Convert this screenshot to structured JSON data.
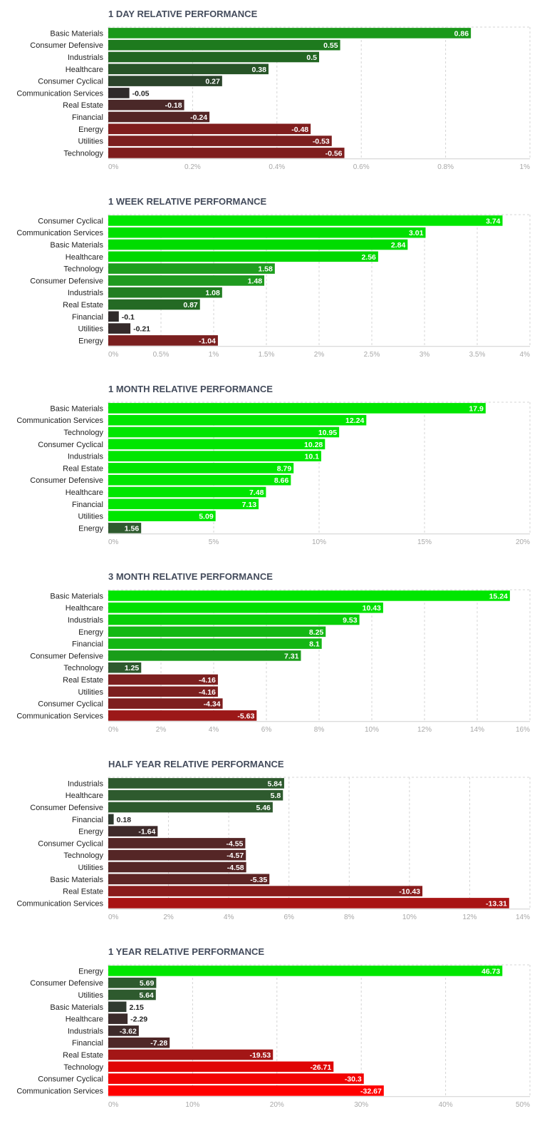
{
  "colors": {
    "positive_strong": "#00e600",
    "positive_mid": "#1ea11e",
    "positive_weak": "#2e5a2e",
    "negative_weak": "#3b2b2b",
    "negative_mid": "#7f1f1f",
    "negative_strong": "#ff0000",
    "grid": "#d4d4d4",
    "title": "#444c5c"
  },
  "chart_data": [
    {
      "type": "bar",
      "orientation": "horizontal",
      "title": "1 DAY RELATIVE PERFORMANCE",
      "categories": [
        "Basic Materials",
        "Consumer Defensive",
        "Industrials",
        "Healthcare",
        "Consumer Cyclical",
        "Communication Services",
        "Real Estate",
        "Financial",
        "Energy",
        "Utilities",
        "Technology"
      ],
      "values": [
        0.86,
        0.55,
        0.5,
        0.38,
        0.27,
        -0.05,
        -0.18,
        -0.24,
        -0.48,
        -0.53,
        -0.56
      ],
      "value_labels": [
        "0.86",
        "0.55",
        "0.5",
        "0.38",
        "0.27",
        "-0.05",
        "-0.18",
        "-0.24",
        "-0.48",
        "-0.53",
        "-0.56"
      ],
      "bar_colors": [
        "#1b991b",
        "#1e7a1e",
        "#226622",
        "#275427",
        "#2b442b",
        "#2f2a2a",
        "#4a2828",
        "#542626",
        "#801d1d",
        "#7c1f1f",
        "#7e1e1e"
      ],
      "xlim": [
        0,
        1
      ],
      "ticks": [
        0,
        0.2,
        0.4,
        0.6,
        0.8,
        1
      ],
      "tick_labels": [
        "0%",
        "0.2%",
        "0.4%",
        "0.6%",
        "0.8%",
        "1%"
      ],
      "bar_length": "absolute value",
      "grid": true
    },
    {
      "type": "bar",
      "orientation": "horizontal",
      "title": "1 WEEK RELATIVE PERFORMANCE",
      "categories": [
        "Consumer Cyclical",
        "Communication Services",
        "Basic Materials",
        "Healthcare",
        "Technology",
        "Consumer Defensive",
        "Industrials",
        "Real Estate",
        "Financial",
        "Utilities",
        "Energy"
      ],
      "values": [
        3.74,
        3.01,
        2.84,
        2.56,
        1.58,
        1.48,
        1.08,
        0.87,
        -0.1,
        -0.21,
        -1.04
      ],
      "value_labels": [
        "3.74",
        "3.01",
        "2.84",
        "2.56",
        "1.58",
        "1.48",
        "1.08",
        "0.87",
        "-0.1",
        "-0.21",
        "-1.04"
      ],
      "bar_colors": [
        "#00e600",
        "#00e000",
        "#00dc00",
        "#00d800",
        "#1e9e1e",
        "#1f9a1f",
        "#217e21",
        "#246a24",
        "#2f2a2a",
        "#352a2a",
        "#7a1f1f"
      ],
      "xlim": [
        0,
        4
      ],
      "ticks": [
        0,
        0.5,
        1,
        1.5,
        2,
        2.5,
        3,
        3.5,
        4
      ],
      "tick_labels": [
        "0%",
        "0.5%",
        "1%",
        "1.5%",
        "2%",
        "2.5%",
        "3%",
        "3.5%",
        "4%"
      ],
      "bar_length": "absolute value",
      "grid": true
    },
    {
      "type": "bar",
      "orientation": "horizontal",
      "title": "1 MONTH RELATIVE PERFORMANCE",
      "categories": [
        "Basic Materials",
        "Communication Services",
        "Technology",
        "Consumer Cyclical",
        "Industrials",
        "Real Estate",
        "Consumer Defensive",
        "Healthcare",
        "Financial",
        "Utilities",
        "Energy"
      ],
      "values": [
        17.9,
        12.24,
        10.95,
        10.28,
        10.1,
        8.79,
        8.66,
        7.48,
        7.13,
        5.09,
        1.56
      ],
      "value_labels": [
        "17.9",
        "12.24",
        "10.95",
        "10.28",
        "10.1",
        "8.79",
        "8.66",
        "7.48",
        "7.13",
        "5.09",
        "1.56"
      ],
      "bar_colors": [
        "#00e600",
        "#00e600",
        "#00e600",
        "#00e600",
        "#00e600",
        "#00e600",
        "#00e600",
        "#00e600",
        "#00e600",
        "#00e600",
        "#2e5a2e"
      ],
      "xlim": [
        0,
        20
      ],
      "ticks": [
        0,
        5,
        10,
        15,
        20
      ],
      "tick_labels": [
        "0%",
        "5%",
        "10%",
        "15%",
        "20%"
      ],
      "bar_length": "absolute value",
      "grid": true
    },
    {
      "type": "bar",
      "orientation": "horizontal",
      "title": "3 MONTH RELATIVE PERFORMANCE",
      "categories": [
        "Basic Materials",
        "Healthcare",
        "Industrials",
        "Energy",
        "Financial",
        "Consumer Defensive",
        "Technology",
        "Real Estate",
        "Utilities",
        "Consumer Cyclical",
        "Communication Services"
      ],
      "values": [
        15.24,
        10.43,
        9.53,
        8.25,
        8.1,
        7.31,
        1.25,
        -4.16,
        -4.16,
        -4.34,
        -5.63
      ],
      "value_labels": [
        "15.24",
        "10.43",
        "9.53",
        "8.25",
        "8.1",
        "7.31",
        "1.25",
        "-4.16",
        "-4.16",
        "-4.34",
        "-5.63"
      ],
      "bar_colors": [
        "#00e600",
        "#00e000",
        "#08cf08",
        "#14b814",
        "#15b615",
        "#1a9d1a",
        "#2e5a2e",
        "#7c1f1f",
        "#7c1f1f",
        "#7e1e1e",
        "#9c1818"
      ],
      "xlim": [
        0,
        16
      ],
      "ticks": [
        0,
        2,
        4,
        6,
        8,
        10,
        12,
        14,
        16
      ],
      "tick_labels": [
        "0%",
        "2%",
        "4%",
        "6%",
        "8%",
        "10%",
        "12%",
        "14%",
        "16%"
      ],
      "bar_length": "absolute value",
      "grid": true
    },
    {
      "type": "bar",
      "orientation": "horizontal",
      "title": "HALF YEAR RELATIVE PERFORMANCE",
      "categories": [
        "Industrials",
        "Healthcare",
        "Consumer Defensive",
        "Financial",
        "Energy",
        "Consumer Cyclical",
        "Technology",
        "Utilities",
        "Basic Materials",
        "Real Estate",
        "Communication Services"
      ],
      "values": [
        5.84,
        5.8,
        5.46,
        0.18,
        -1.64,
        -4.55,
        -4.57,
        -4.58,
        -5.35,
        -10.43,
        -13.31
      ],
      "value_labels": [
        "5.84",
        "5.8",
        "5.46",
        "0.18",
        "-1.64",
        "-4.55",
        "-4.57",
        "-4.58",
        "-5.35",
        "-10.43",
        "-13.31"
      ],
      "bar_colors": [
        "#2e5a2e",
        "#2e5a2e",
        "#2e5a2e",
        "#2f3a2f",
        "#3e2a2a",
        "#552626",
        "#552626",
        "#552626",
        "#5e2424",
        "#8a1c1c",
        "#a81515"
      ],
      "xlim": [
        0,
        14
      ],
      "ticks": [
        0,
        2,
        4,
        6,
        8,
        10,
        12,
        14
      ],
      "tick_labels": [
        "0%",
        "2%",
        "4%",
        "6%",
        "8%",
        "10%",
        "12%",
        "14%"
      ],
      "bar_length": "absolute value",
      "grid": true
    },
    {
      "type": "bar",
      "orientation": "horizontal",
      "title": "1 YEAR RELATIVE PERFORMANCE",
      "categories": [
        "Energy",
        "Consumer Defensive",
        "Utilities",
        "Basic Materials",
        "Healthcare",
        "Industrials",
        "Financial",
        "Real Estate",
        "Technology",
        "Consumer Cyclical",
        "Communication Services"
      ],
      "values": [
        46.73,
        5.69,
        5.64,
        2.15,
        -2.29,
        -3.62,
        -7.28,
        -19.53,
        -26.71,
        -30.3,
        -32.67
      ],
      "value_labels": [
        "46.73",
        "5.69",
        "5.64",
        "2.15",
        "-2.29",
        "-3.62",
        "-7.28",
        "-19.53",
        "-26.71",
        "-30.3",
        "-32.67"
      ],
      "bar_colors": [
        "#00e600",
        "#2e5a2e",
        "#2e5a2e",
        "#2f3a2f",
        "#3b2b2b",
        "#3e2a2a",
        "#4f2727",
        "#a31616",
        "#e00505",
        "#f20202",
        "#ff0000"
      ],
      "xlim": [
        0,
        50
      ],
      "ticks": [
        0,
        10,
        20,
        30,
        40,
        50
      ],
      "tick_labels": [
        "0%",
        "10%",
        "20%",
        "30%",
        "40%",
        "50%"
      ],
      "bar_length": "absolute value",
      "grid": true
    }
  ]
}
